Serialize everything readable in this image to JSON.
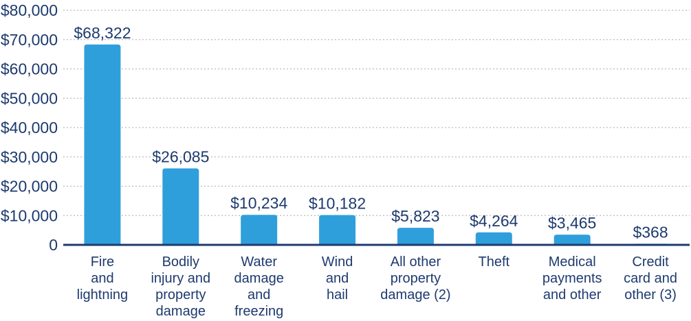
{
  "chart_data": {
    "type": "bar",
    "categories": [
      [
        "Fire",
        "and",
        "lightning"
      ],
      [
        "Bodily",
        "injury and",
        "property",
        "damage"
      ],
      [
        "Water",
        "damage",
        "and",
        "freezing"
      ],
      [
        "Wind",
        "and",
        "hail"
      ],
      [
        "All other",
        "property",
        "damage (2)"
      ],
      [
        "Theft"
      ],
      [
        "Medical",
        "payments",
        "and other"
      ],
      [
        "Credit",
        "card and",
        "other (3)"
      ]
    ],
    "values": [
      68322,
      26085,
      10234,
      10182,
      5823,
      4264,
      3465,
      368
    ],
    "data_labels": [
      "$68,322",
      "$26,085",
      "$10,234",
      "$10,182",
      "$5,823",
      "$4,264",
      "$3,465",
      "$368"
    ],
    "ylim": [
      0,
      80000
    ],
    "yticks": [
      0,
      10000,
      20000,
      30000,
      40000,
      50000,
      60000,
      70000,
      80000
    ],
    "ytick_labels": [
      "0",
      "$10,000",
      "$20,000",
      "$30,000",
      "$40,000",
      "$50,000",
      "$60,000",
      "$70,000",
      "$80,000"
    ],
    "title": "",
    "xlabel": "",
    "ylabel": "",
    "grid": true,
    "colors": {
      "bar": "#2f9fdc",
      "text": "#1d3a6e",
      "axis": "#1d3a6e",
      "grid": "#b9b9b9"
    }
  }
}
